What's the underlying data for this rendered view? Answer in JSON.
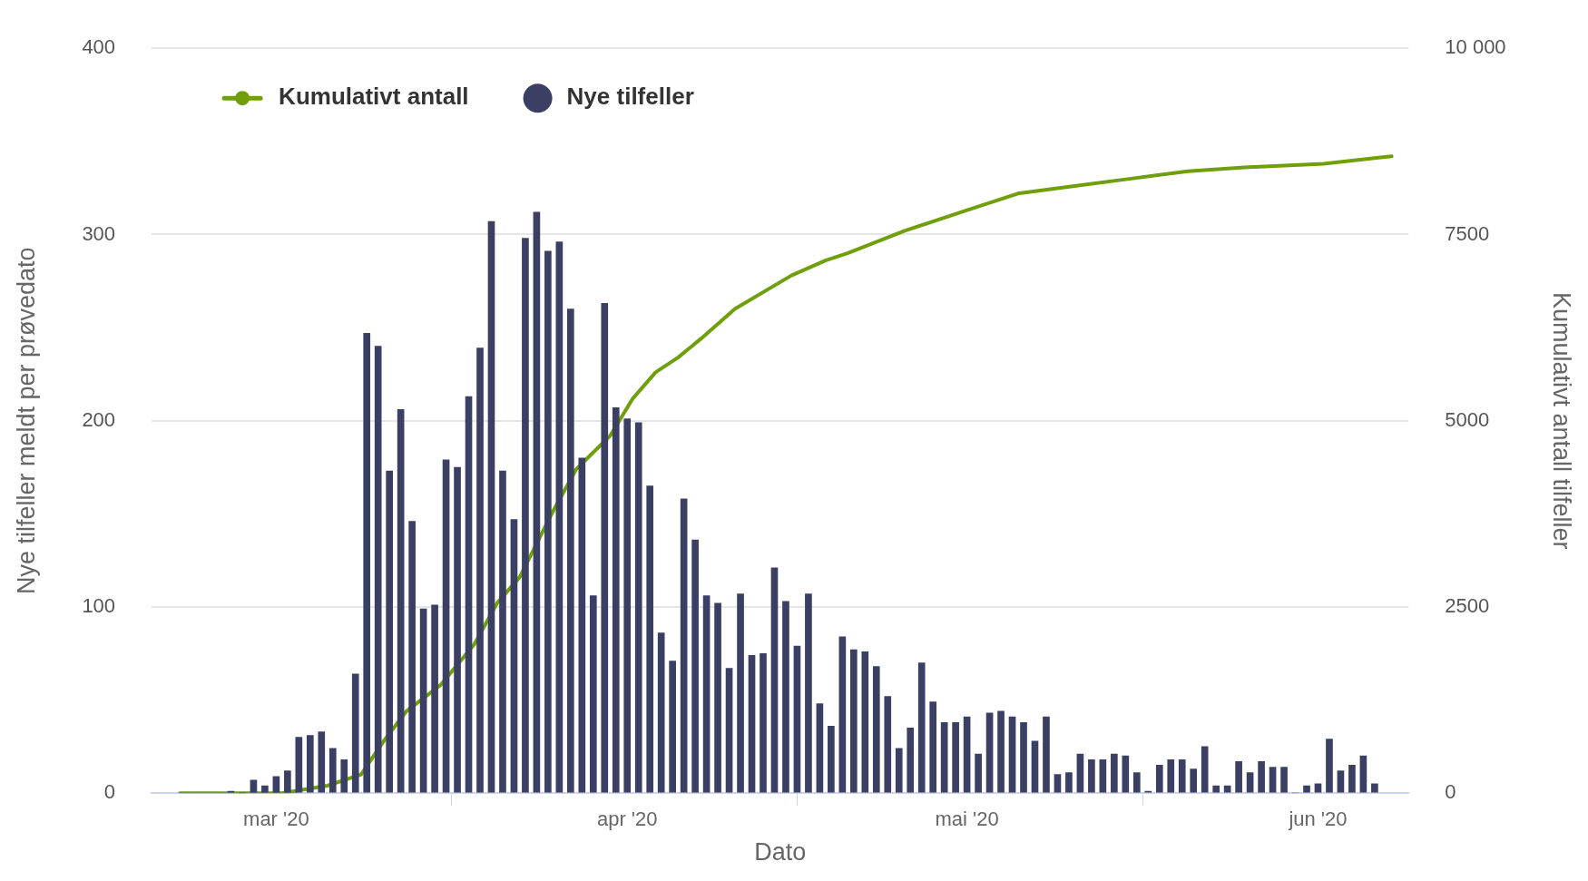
{
  "chart_data": {
    "type": "bar",
    "xlabel": "Dato",
    "ylabel": "Nye tilfeller meldt per prøvedato",
    "y2label": "Kumulativt antall tilfeller",
    "x": [
      "2020-02-26",
      "2020-02-27",
      "2020-02-28",
      "2020-02-29",
      "2020-03-01",
      "2020-03-02",
      "2020-03-03",
      "2020-03-04",
      "2020-03-05",
      "2020-03-06",
      "2020-03-07",
      "2020-03-08",
      "2020-03-09",
      "2020-03-10",
      "2020-03-11",
      "2020-03-12",
      "2020-03-13",
      "2020-03-14",
      "2020-03-15",
      "2020-03-16",
      "2020-03-17",
      "2020-03-18",
      "2020-03-19",
      "2020-03-20",
      "2020-03-21",
      "2020-03-22",
      "2020-03-23",
      "2020-03-24",
      "2020-03-25",
      "2020-03-26",
      "2020-03-27",
      "2020-03-28",
      "2020-03-29",
      "2020-03-30",
      "2020-03-31",
      "2020-04-01",
      "2020-04-02",
      "2020-04-03",
      "2020-04-04",
      "2020-04-05",
      "2020-04-06",
      "2020-04-07",
      "2020-04-08",
      "2020-04-09",
      "2020-04-10",
      "2020-04-11",
      "2020-04-12",
      "2020-04-13",
      "2020-04-14",
      "2020-04-15",
      "2020-04-16",
      "2020-04-17",
      "2020-04-18",
      "2020-04-19",
      "2020-04-20",
      "2020-04-21",
      "2020-04-22",
      "2020-04-23",
      "2020-04-24",
      "2020-04-25",
      "2020-04-26",
      "2020-04-27",
      "2020-04-28",
      "2020-04-29",
      "2020-04-30",
      "2020-05-01",
      "2020-05-02",
      "2020-05-03",
      "2020-05-04",
      "2020-05-05",
      "2020-05-06",
      "2020-05-07",
      "2020-05-08",
      "2020-05-09",
      "2020-05-10",
      "2020-05-11",
      "2020-05-12",
      "2020-05-13",
      "2020-05-14",
      "2020-05-15",
      "2020-05-16",
      "2020-05-17",
      "2020-05-18",
      "2020-05-19",
      "2020-05-20",
      "2020-05-21",
      "2020-05-22",
      "2020-05-23",
      "2020-05-24",
      "2020-05-25",
      "2020-05-26",
      "2020-05-27",
      "2020-05-28",
      "2020-05-29",
      "2020-05-30",
      "2020-05-31",
      "2020-06-01",
      "2020-06-02",
      "2020-06-03",
      "2020-06-04",
      "2020-06-05",
      "2020-06-06"
    ],
    "series": [
      {
        "name": "Kumulativt antall",
        "type": "line",
        "axis": "y2",
        "color": "#6f9f0b",
        "x": [
          "2020-02-21T12:00",
          "2020-02-26T12:00",
          "2020-03-01T12:00",
          "2020-03-05T12:00",
          "2020-03-08T12:00",
          "2020-03-10T12:00",
          "2020-03-12T12:00",
          "2020-03-15T12:00",
          "2020-03-18T12:00",
          "2020-03-20T12:00",
          "2020-03-22T12:00",
          "2020-03-25T12:00",
          "2020-03-27T12:00",
          "2020-03-28T12:00",
          "2020-03-30T12:00",
          "2020-04-01T12:00",
          "2020-04-03T12:00",
          "2020-04-05T12:00",
          "2020-04-07T12:00",
          "2020-04-10T12:00",
          "2020-04-15T12:00",
          "2020-04-18T12:00",
          "2020-04-20T12:00",
          "2020-04-25T12:00",
          "2020-05-01T12:00",
          "2020-05-05T12:00",
          "2020-05-10T12:00",
          "2020-05-15T12:00",
          "2020-05-20T12:00",
          "2020-05-25T12:00",
          "2020-06-01T12:00",
          "2020-06-07T12:00"
        ],
        "values": [
          0,
          0,
          0,
          100,
          250,
          700,
          1100,
          1450,
          2000,
          2550,
          2900,
          3800,
          4350,
          4500,
          4800,
          5300,
          5650,
          5850,
          6100,
          6500,
          6950,
          7150,
          7250,
          7550,
          7850,
          8050,
          8150,
          8250,
          8350,
          8400,
          8450,
          8550
        ]
      },
      {
        "name": "Nye tilfeller",
        "color": "#3b3f63",
        "values": [
          1,
          0,
          7,
          4,
          9,
          12,
          30,
          31,
          33,
          24,
          18,
          64,
          247,
          240,
          173,
          206,
          146,
          99,
          101,
          179,
          175,
          213,
          239,
          307,
          173,
          147,
          298,
          312,
          291,
          296,
          260,
          180,
          106,
          263,
          207,
          201,
          199,
          165,
          86,
          71,
          158,
          136,
          106,
          102,
          67,
          107,
          74,
          75,
          121,
          103,
          79,
          107,
          48,
          36,
          84,
          77,
          76,
          68,
          52,
          24,
          35,
          70,
          49,
          38,
          38,
          41,
          21,
          43,
          44,
          41,
          38,
          28,
          41,
          10,
          11,
          21,
          18,
          18,
          21,
          20,
          11,
          1,
          15,
          18,
          18,
          13,
          25,
          4,
          4,
          17,
          11,
          17,
          14,
          14,
          0,
          4,
          5,
          29,
          12,
          15,
          20,
          5
        ]
      }
    ],
    "xlim": [
      "2020-02-19",
      "2020-06-09"
    ],
    "xticks": [
      {
        "value": "2020-03-01",
        "label": "mar '20"
      },
      {
        "value": "2020-04-01",
        "label": "apr '20"
      },
      {
        "value": "2020-05-01",
        "label": "mai '20"
      },
      {
        "value": "2020-06-01",
        "label": "jun '20"
      }
    ],
    "ylim": [
      0,
      400
    ],
    "yticks": [
      0,
      100,
      200,
      300,
      400
    ],
    "y2lim": [
      0,
      10000
    ],
    "y2ticks": [
      0,
      2500,
      5000,
      7500,
      {
        "value": 10000,
        "label": "10 000"
      }
    ],
    "grid": "y",
    "legend": "top left"
  }
}
